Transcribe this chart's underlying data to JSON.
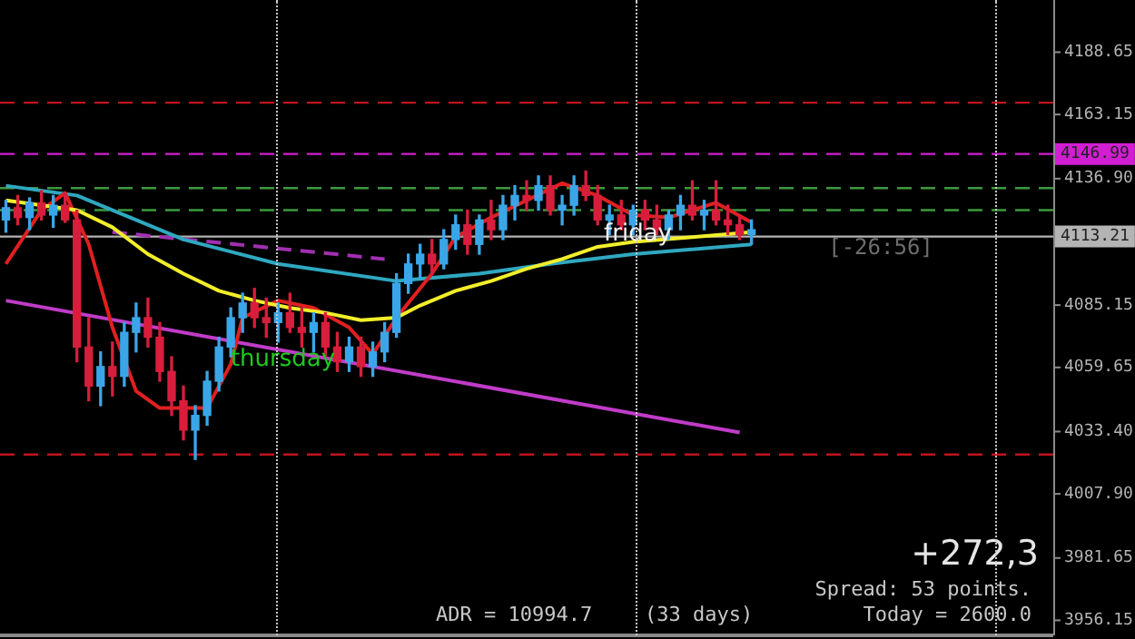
{
  "chart_data": {
    "type": "candlestick",
    "categories": [
      null,
      null,
      null,
      null,
      null,
      null,
      null,
      null,
      null,
      null,
      null,
      null,
      null,
      null,
      null,
      null,
      null,
      null,
      null,
      null,
      null,
      null,
      null,
      null,
      null,
      null,
      null,
      null,
      null,
      null,
      null,
      null,
      null,
      null,
      null,
      null,
      null,
      null,
      null,
      null,
      null,
      null,
      null,
      null,
      null,
      null,
      null,
      null,
      null,
      null,
      null,
      null,
      null,
      null,
      null,
      null,
      null,
      null,
      null,
      null,
      null,
      null,
      null,
      null,
      null,
      null,
      null,
      null,
      null,
      null,
      null,
      null,
      null,
      null,
      null,
      null,
      null,
      null,
      null,
      null,
      null,
      null,
      null,
      null,
      null,
      null,
      null,
      null,
      null
    ],
    "ohlc": [
      [
        4120,
        4128,
        4115,
        4125
      ],
      [
        4125,
        4130,
        4118,
        4121
      ],
      [
        4121,
        4129,
        4116,
        4127
      ],
      [
        4127,
        4132,
        4120,
        4122
      ],
      [
        4122,
        4130,
        4117,
        4126
      ],
      [
        4126,
        4131,
        4119,
        4120
      ],
      [
        4120,
        4124,
        4062,
        4068
      ],
      [
        4068,
        4080,
        4046,
        4052
      ],
      [
        4052,
        4066,
        4044,
        4060
      ],
      [
        4060,
        4070,
        4048,
        4056
      ],
      [
        4056,
        4078,
        4052,
        4074
      ],
      [
        4074,
        4086,
        4066,
        4080
      ],
      [
        4080,
        4088,
        4068,
        4072
      ],
      [
        4072,
        4078,
        4054,
        4058
      ],
      [
        4058,
        4064,
        4040,
        4046
      ],
      [
        4046,
        4052,
        4030,
        4034
      ],
      [
        4034,
        4044,
        4022,
        4040
      ],
      [
        4040,
        4058,
        4036,
        4054
      ],
      [
        4054,
        4072,
        4050,
        4068
      ],
      [
        4068,
        4084,
        4064,
        4080
      ],
      [
        4080,
        4090,
        4074,
        4086
      ],
      [
        4086,
        4092,
        4076,
        4080
      ],
      [
        4080,
        4088,
        4072,
        4078
      ],
      [
        4078,
        4086,
        4070,
        4082
      ],
      [
        4082,
        4090,
        4074,
        4076
      ],
      [
        4076,
        4084,
        4068,
        4074
      ],
      [
        4074,
        4082,
        4066,
        4078
      ],
      [
        4078,
        4082,
        4064,
        4068
      ],
      [
        4068,
        4074,
        4058,
        4062
      ],
      [
        4062,
        4072,
        4058,
        4068
      ],
      [
        4068,
        4072,
        4056,
        4060
      ],
      [
        4060,
        4070,
        4056,
        4066
      ],
      [
        4066,
        4078,
        4062,
        4074
      ],
      [
        4074,
        4098,
        4072,
        4094
      ],
      [
        4094,
        4106,
        4090,
        4102
      ],
      [
        4102,
        4110,
        4096,
        4106
      ],
      [
        4106,
        4112,
        4098,
        4102
      ],
      [
        4102,
        4116,
        4100,
        4112
      ],
      [
        4112,
        4122,
        4108,
        4118
      ],
      [
        4118,
        4124,
        4106,
        4110
      ],
      [
        4110,
        4122,
        4106,
        4120
      ],
      [
        4120,
        4128,
        4112,
        4116
      ],
      [
        4116,
        4130,
        4112,
        4126
      ],
      [
        4126,
        4134,
        4120,
        4130
      ],
      [
        4130,
        4136,
        4124,
        4128
      ],
      [
        4128,
        4138,
        4124,
        4134
      ],
      [
        4134,
        4138,
        4122,
        4124
      ],
      [
        4124,
        4130,
        4118,
        4126
      ],
      [
        4126,
        4138,
        4122,
        4134
      ],
      [
        4134,
        4140,
        4128,
        4130
      ],
      [
        4130,
        4134,
        4118,
        4120
      ],
      [
        4120,
        4126,
        4114,
        4122
      ],
      [
        4122,
        4128,
        4116,
        4118
      ],
      [
        4118,
        4126,
        4114,
        4124
      ],
      [
        4124,
        4128,
        4116,
        4120
      ],
      [
        4120,
        4126,
        4114,
        4116
      ],
      [
        4116,
        4124,
        4112,
        4122
      ],
      [
        4122,
        4130,
        4116,
        4126
      ],
      [
        4126,
        4136,
        4120,
        4122
      ],
      [
        4122,
        4128,
        4116,
        4124
      ],
      [
        4124,
        4136,
        4118,
        4120
      ],
      [
        4120,
        4126,
        4114,
        4118
      ],
      [
        4118,
        4122,
        4112,
        4114
      ],
      [
        4114,
        4120,
        4110,
        4116
      ],
      null,
      null,
      null,
      null,
      null,
      null,
      null,
      null,
      null,
      null,
      null,
      null,
      null,
      null,
      null,
      null,
      null,
      null,
      null,
      null,
      null,
      null,
      null,
      null,
      null
    ],
    "colors": [
      "#3aa6e8",
      "#d81e3c",
      "#3aa6e8",
      "#d81e3c",
      "#3aa6e8",
      "#d81e3c",
      "#d81e3c",
      "#d81e3c",
      "#3aa6e8",
      "#d81e3c",
      "#3aa6e8",
      "#3aa6e8",
      "#d81e3c",
      "#d81e3c",
      "#d81e3c",
      "#d81e3c",
      "#3aa6e8",
      "#3aa6e8",
      "#3aa6e8",
      "#3aa6e8",
      "#3aa6e8",
      "#d81e3c",
      "#d81e3c",
      "#3aa6e8",
      "#d81e3c",
      "#d81e3c",
      "#3aa6e8",
      "#d81e3c",
      "#d81e3c",
      "#3aa6e8",
      "#d81e3c",
      "#3aa6e8",
      "#3aa6e8",
      "#3aa6e8",
      "#3aa6e8",
      "#3aa6e8",
      "#d81e3c",
      "#3aa6e8",
      "#3aa6e8",
      "#d81e3c",
      "#3aa6e8",
      "#d81e3c",
      "#3aa6e8",
      "#3aa6e8",
      "#d81e3c",
      "#3aa6e8",
      "#d81e3c",
      "#3aa6e8",
      "#3aa6e8",
      "#d81e3c",
      "#d81e3c",
      "#3aa6e8",
      "#d81e3c",
      "#3aa6e8",
      "#d81e3c",
      "#d81e3c",
      "#3aa6e8",
      "#3aa6e8",
      "#d81e3c",
      "#3aa6e8",
      "#d81e3c",
      "#d81e3c",
      "#d81e3c",
      "#3aa6e8",
      null,
      null,
      null,
      null,
      null,
      null,
      null,
      null,
      null,
      null,
      null,
      null,
      null,
      null,
      null,
      null,
      null,
      null,
      null,
      null,
      null,
      null,
      null,
      null,
      null
    ],
    "series": [
      {
        "type": "line",
        "color": "#f2ee2a",
        "values": [
          4128,
          null,
          null,
          null,
          null,
          null,
          4124,
          null,
          null,
          4117,
          null,
          null,
          4106,
          null,
          null,
          4098,
          null,
          null,
          4091,
          null,
          null,
          4087,
          null,
          null,
          4084,
          null,
          null,
          4082,
          null,
          null,
          4079,
          null,
          null,
          4080,
          null,
          4085,
          null,
          null,
          4091,
          null,
          null,
          4095,
          null,
          null,
          4100,
          null,
          null,
          4104,
          null,
          null,
          4109,
          null,
          null,
          4111,
          null,
          null,
          null,
          null,
          4113,
          null,
          null,
          null,
          null,
          4115,
          null,
          null,
          null,
          null,
          null,
          null,
          null,
          null,
          null,
          null,
          null,
          null,
          null,
          null,
          null,
          null,
          null,
          null,
          null,
          null,
          null,
          null,
          null,
          null,
          null
        ]
      },
      {
        "type": "line",
        "color": "#e02020",
        "values": [
          4102,
          null,
          null,
          4124,
          null,
          4131,
          null,
          4110,
          null,
          4076,
          null,
          4050,
          null,
          4043,
          null,
          null,
          null,
          4043,
          null,
          4061,
          4080,
          null,
          null,
          4087,
          null,
          null,
          4084,
          null,
          null,
          4076,
          null,
          4065,
          null,
          4080,
          null,
          null,
          4098,
          null,
          4113,
          null,
          null,
          4121,
          null,
          null,
          4128,
          null,
          null,
          4135,
          null,
          null,
          4130,
          null,
          null,
          4122,
          null,
          null,
          4121,
          null,
          null,
          null,
          4127,
          null,
          null,
          4119,
          null,
          null,
          null,
          null,
          null,
          null,
          null,
          null,
          null,
          null,
          null,
          null,
          null,
          null,
          null,
          null,
          null,
          null,
          null,
          null,
          null,
          null,
          null,
          null,
          null
        ]
      },
      {
        "type": "line",
        "color": "#2fa8c0",
        "values": [
          4134,
          null,
          null,
          null,
          null,
          null,
          4130,
          null,
          null,
          null,
          null,
          null,
          null,
          null,
          null,
          4112,
          null,
          null,
          null,
          null,
          null,
          null,
          null,
          4102,
          null,
          null,
          null,
          null,
          null,
          null,
          null,
          null,
          null,
          4095,
          null,
          null,
          null,
          null,
          null,
          null,
          4098,
          null,
          null,
          null,
          null,
          null,
          4102,
          null,
          null,
          null,
          null,
          null,
          null,
          4106,
          null,
          null,
          null,
          null,
          null,
          null,
          null,
          null,
          null,
          4110,
          null,
          null,
          null,
          null,
          null,
          null,
          null,
          null,
          null,
          null,
          null,
          null,
          null,
          null,
          null,
          null,
          null,
          null,
          null,
          null,
          null,
          null,
          null,
          null,
          null
        ]
      },
      {
        "type": "line",
        "color": "#c03cc8",
        "values": [
          4087,
          null,
          null,
          null,
          null,
          null,
          null,
          null,
          null,
          null,
          null,
          null,
          null,
          null,
          null,
          null,
          null,
          null,
          null,
          null,
          null,
          null,
          null,
          null,
          null,
          null,
          null,
          null,
          null,
          null,
          null,
          null,
          null,
          null,
          null,
          null,
          null,
          null,
          null,
          null,
          null,
          null,
          null,
          null,
          null,
          null,
          null,
          null,
          null,
          null,
          null,
          null,
          null,
          null,
          null,
          null,
          null,
          null,
          null,
          null,
          null,
          null,
          4033,
          null,
          null,
          null,
          null,
          null,
          null,
          null,
          null,
          null,
          null,
          null,
          null,
          null,
          null,
          null,
          null,
          null,
          null,
          null,
          null,
          null,
          null,
          null,
          null,
          null,
          null
        ]
      },
      {
        "type": "line",
        "color": "#a030b0",
        "line_style": "dashed",
        "values": [
          null,
          null,
          null,
          null,
          null,
          null,
          null,
          null,
          null,
          4115,
          null,
          null,
          null,
          null,
          null,
          null,
          null,
          null,
          null,
          null,
          null,
          null,
          null,
          null,
          null,
          null,
          null,
          null,
          null,
          null,
          null,
          null,
          4104,
          null,
          null,
          null,
          null,
          null,
          null,
          null,
          null,
          null,
          null,
          null,
          null,
          null,
          null,
          null,
          null,
          null,
          null,
          null,
          null,
          null,
          null,
          null,
          null,
          null,
          null,
          null,
          null,
          null,
          null,
          null,
          null,
          null,
          null,
          null,
          null,
          null,
          null,
          null,
          null,
          null,
          null,
          null,
          null,
          null,
          null,
          null,
          null,
          null,
          null,
          null,
          null,
          null,
          null,
          null,
          null
        ]
      }
    ],
    "ylim": [
      3950,
      4210
    ],
    "yticks": [
      {
        "value": 3956.15,
        "label": "3956.15"
      },
      {
        "value": 3981.65,
        "label": "3981.65"
      },
      {
        "value": 4007.9,
        "label": "4007.90"
      },
      {
        "value": 4033.4,
        "label": "4033.40"
      },
      {
        "value": 4059.65,
        "label": "4059.65"
      },
      {
        "value": 4085.15,
        "label": "4085.15"
      },
      {
        "value": 4136.9,
        "label": "4136.90"
      },
      {
        "value": 4163.15,
        "label": "4163.15"
      },
      {
        "value": 4188.65,
        "label": "4188.65"
      }
    ],
    "tick_labels": "y",
    "legend": false,
    "marker": "none",
    "ref_lines": [
      {
        "axis": "y",
        "value": 4168,
        "label": null,
        "color": "#c0141e",
        "line_style": "dashed"
      },
      {
        "axis": "y",
        "value": 4024,
        "label": null,
        "color": "#c0141e",
        "line_style": "dashed"
      },
      {
        "axis": "y",
        "value": 4146.99,
        "label": "4146.99",
        "color": "#d21ed2",
        "line_style": "dashed"
      },
      {
        "axis": "y",
        "value": 4133,
        "label": null,
        "color": "#3c9a3c",
        "line_style": "dashed"
      },
      {
        "axis": "y",
        "value": 4124,
        "label": null,
        "color": "#3c9a3c",
        "line_style": "dashed"
      },
      {
        "axis": "y",
        "value": 4113.21,
        "label": "4113.21",
        "color": "#b4b4b4",
        "line_style": "solid"
      }
    ],
    "annotations": [
      {
        "text": "thursday",
        "y": 4063
      },
      {
        "text": "friday",
        "y": 4114
      },
      "[-26:56]",
      "+272,3",
      "Spread: 53 points.",
      "ADR = 10994.7",
      "(33 days)",
      "Today = 2600.0"
    ]
  }
}
